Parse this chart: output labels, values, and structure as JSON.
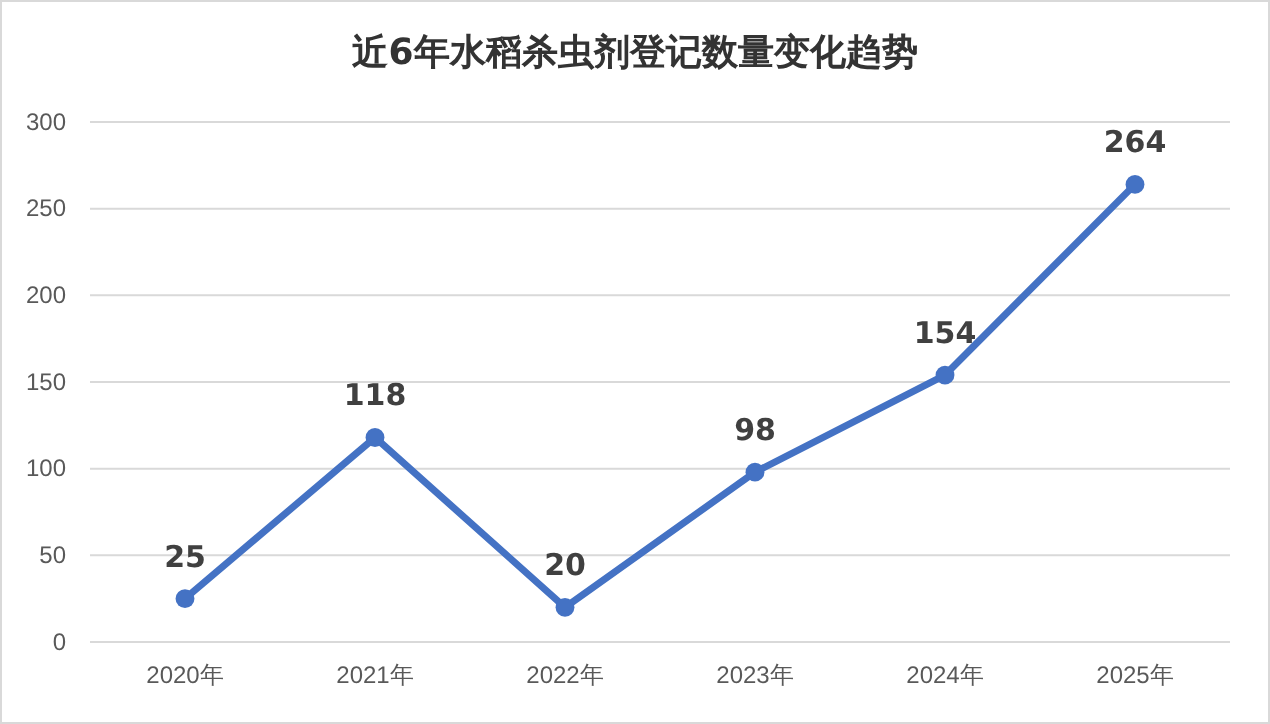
{
  "chart_data": {
    "type": "line",
    "title": "近6年水稻杀虫剂登记数量变化趋势",
    "categories": [
      "2020年",
      "2021年",
      "2022年",
      "2023年",
      "2024年",
      "2025年"
    ],
    "series": [
      {
        "color": "#4472c4",
        "values": [
          25,
          118,
          20,
          98,
          154,
          264
        ]
      }
    ],
    "ylim": [
      0,
      300
    ],
    "yticks": [
      0,
      50,
      100,
      150,
      200,
      250,
      300
    ],
    "grid": "y",
    "marker": "circle",
    "line_style": "solid",
    "data_labels": true
  }
}
